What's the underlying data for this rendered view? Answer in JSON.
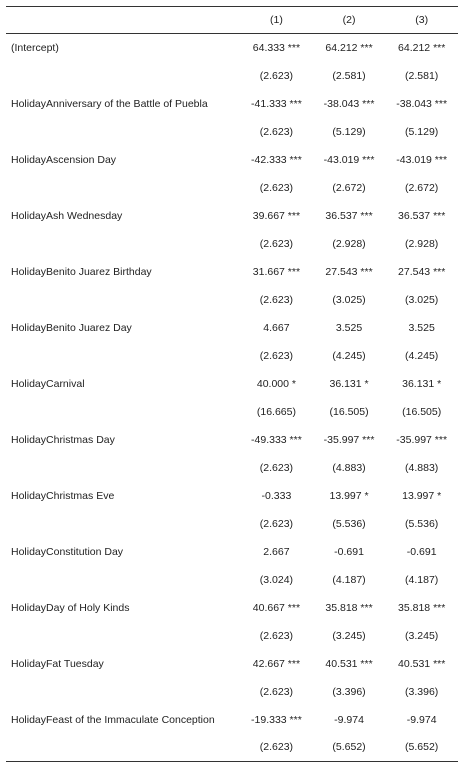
{
  "table": {
    "headers": [
      "",
      "(1)",
      "(2)",
      "(3)"
    ],
    "rows": [
      {
        "label": "(Intercept)",
        "coef": [
          "64.333 ***",
          "64.212 ***",
          "64.212 ***"
        ],
        "se": [
          "(2.623)",
          "(2.581)",
          "(2.581)"
        ]
      },
      {
        "label": "HolidayAnniversary of the Battle of Puebla",
        "coef": [
          "-41.333 ***",
          "-38.043 ***",
          "-38.043 ***"
        ],
        "se": [
          "(2.623)",
          "(5.129)",
          "(5.129)"
        ]
      },
      {
        "label": "HolidayAscension Day",
        "coef": [
          "-42.333 ***",
          "-43.019 ***",
          "-43.019 ***"
        ],
        "se": [
          "(2.623)",
          "(2.672)",
          "(2.672)"
        ]
      },
      {
        "label": "HolidayAsh Wednesday",
        "coef": [
          "39.667 ***",
          "36.537 ***",
          "36.537 ***"
        ],
        "se": [
          "(2.623)",
          "(2.928)",
          "(2.928)"
        ]
      },
      {
        "label": "HolidayBenito Juarez Birthday",
        "coef": [
          "31.667 ***",
          "27.543 ***",
          "27.543 ***"
        ],
        "se": [
          "(2.623)",
          "(3.025)",
          "(3.025)"
        ]
      },
      {
        "label": "HolidayBenito Juarez Day",
        "coef": [
          "4.667",
          "3.525",
          "3.525"
        ],
        "se": [
          "(2.623)",
          "(4.245)",
          "(4.245)"
        ]
      },
      {
        "label": "HolidayCarnival",
        "coef": [
          "40.000 *",
          "36.131 *",
          "36.131 *"
        ],
        "se": [
          "(16.665)",
          "(16.505)",
          "(16.505)"
        ]
      },
      {
        "label": "HolidayChristmas Day",
        "coef": [
          "-49.333 ***",
          "-35.997 ***",
          "-35.997 ***"
        ],
        "se": [
          "(2.623)",
          "(4.883)",
          "(4.883)"
        ]
      },
      {
        "label": "HolidayChristmas Eve",
        "coef": [
          "-0.333",
          "13.997 *",
          "13.997 *"
        ],
        "se": [
          "(2.623)",
          "(5.536)",
          "(5.536)"
        ]
      },
      {
        "label": "HolidayConstitution Day",
        "coef": [
          "2.667",
          "-0.691",
          "-0.691"
        ],
        "se": [
          "(3.024)",
          "(4.187)",
          "(4.187)"
        ]
      },
      {
        "label": "HolidayDay of Holy Kinds",
        "coef": [
          "40.667 ***",
          "35.818 ***",
          "35.818 ***"
        ],
        "se": [
          "(2.623)",
          "(3.245)",
          "(3.245)"
        ]
      },
      {
        "label": "HolidayFat Tuesday",
        "coef": [
          "42.667 ***",
          "40.531 ***",
          "40.531 ***"
        ],
        "se": [
          "(2.623)",
          "(3.396)",
          "(3.396)"
        ]
      },
      {
        "label": "HolidayFeast of the Immaculate Conception",
        "coef": [
          "-19.333 ***",
          "-9.974",
          "-9.974"
        ],
        "se": [
          "(2.623)",
          "(5.652)",
          "(5.652)"
        ]
      }
    ]
  }
}
